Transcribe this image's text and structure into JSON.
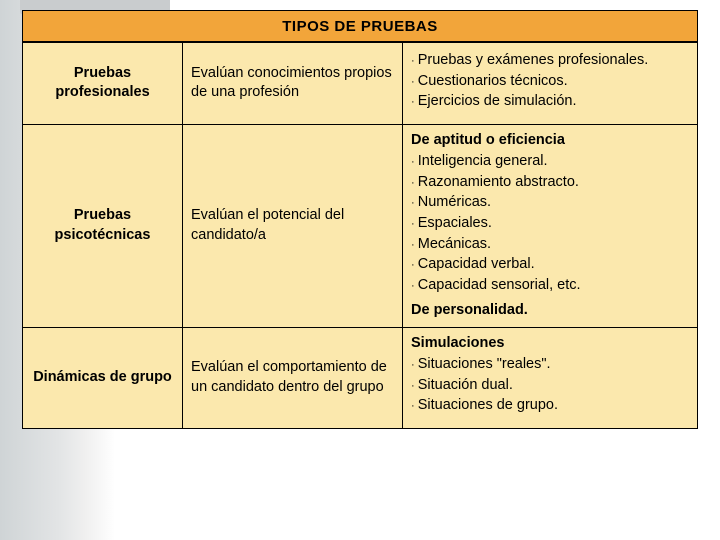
{
  "colors": {
    "title_bg": "#f2a53a",
    "cell_bg": "#fbe8ad",
    "border": "#000000",
    "text": "#000000"
  },
  "header": {
    "title": "TIPOS DE PRUEBAS"
  },
  "rows": [
    {
      "name": "Pruebas profesionales",
      "desc": "Evalúan conocimientos propios de una profesión",
      "details": {
        "sections": [
          {
            "heading": null,
            "items": [
              "Pruebas y exámenes profesionales.",
              "Cuestionarios técnicos.",
              "Ejercicios de simulación."
            ]
          }
        ]
      }
    },
    {
      "name": "Pruebas psicotécnicas",
      "desc": "Evalúan el potencial del candidato/a",
      "details": {
        "sections": [
          {
            "heading": "De aptitud o eficiencia",
            "items": [
              "Inteligencia general.",
              "Razonamiento abstracto.",
              "Numéricas.",
              "Espaciales.",
              "Mecánicas.",
              "Capacidad verbal.",
              "Capacidad sensorial, etc."
            ]
          },
          {
            "heading": "De personalidad.",
            "items": []
          }
        ]
      }
    },
    {
      "name": "Dinámicas de grupo",
      "desc": "Evalúan el comportamiento de un candidato dentro del grupo",
      "details": {
        "sections": [
          {
            "heading": "Simulaciones",
            "items": [
              "Situaciones \"reales\".",
              "Situación dual.",
              "Situaciones de grupo."
            ]
          }
        ]
      }
    }
  ]
}
